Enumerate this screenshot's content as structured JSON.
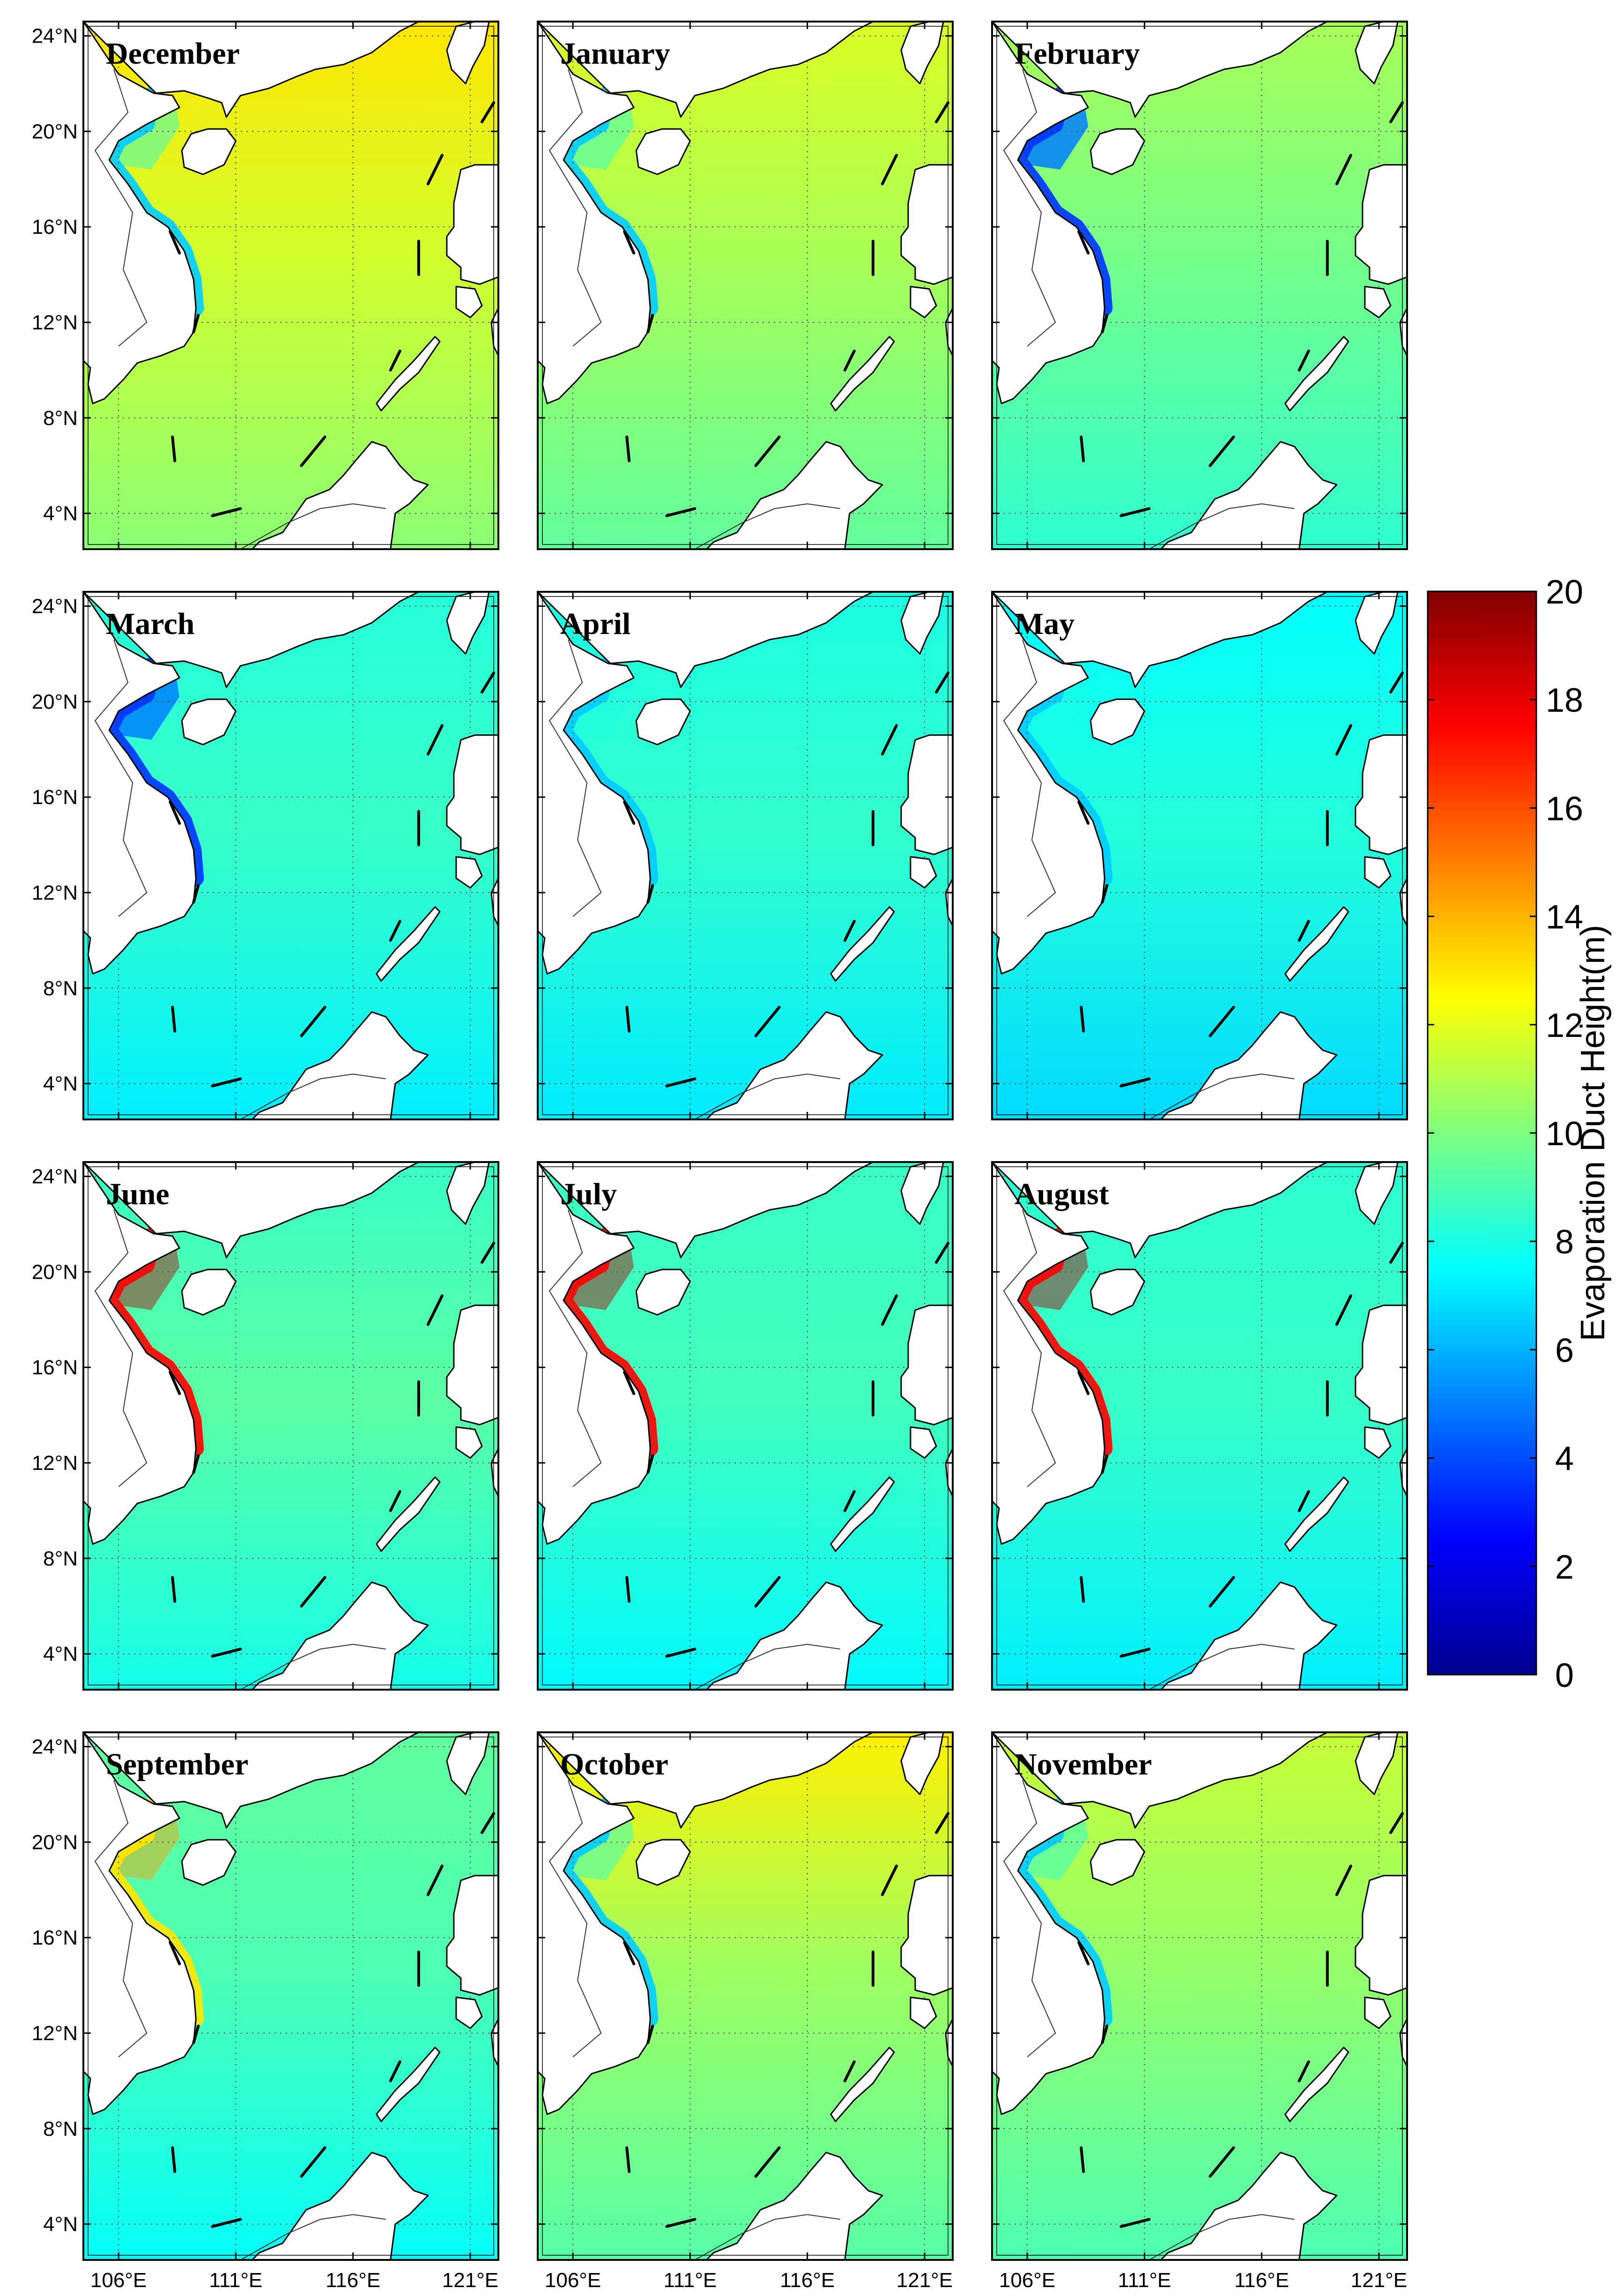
{
  "chart_data": {
    "type": "heatmap",
    "layout": {
      "rows": 4,
      "cols": 3
    },
    "panels": [
      {
        "title": "December",
        "mean_value": 11.6,
        "north_value": 13.0,
        "coastal_band": "low"
      },
      {
        "title": "January",
        "mean_value": 10.8,
        "north_value": 11.8,
        "coastal_band": "low"
      },
      {
        "title": "February",
        "mean_value": 9.8,
        "north_value": 10.8,
        "coastal_band": "lowest"
      },
      {
        "title": "March",
        "mean_value": 8.6,
        "north_value": 8.2,
        "coastal_band": "lowest"
      },
      {
        "title": "April",
        "mean_value": 8.5,
        "north_value": 8.0,
        "coastal_band": "low"
      },
      {
        "title": "May",
        "mean_value": 8.2,
        "north_value": 7.5,
        "coastal_band": "low"
      },
      {
        "title": "June",
        "mean_value": 9.3,
        "north_value": 8.6,
        "coastal_band": "high"
      },
      {
        "title": "July",
        "mean_value": 8.8,
        "north_value": 8.6,
        "coastal_band": "high"
      },
      {
        "title": "August",
        "mean_value": 8.6,
        "north_value": 8.4,
        "coastal_band": "high"
      },
      {
        "title": "September",
        "mean_value": 9.0,
        "north_value": 9.4,
        "coastal_band": "medium"
      },
      {
        "title": "October",
        "mean_value": 10.6,
        "north_value": 12.8,
        "coastal_band": "low"
      },
      {
        "title": "November",
        "mean_value": 10.4,
        "north_value": 11.4,
        "coastal_band": "low"
      }
    ],
    "x_ticks": [
      "106°E",
      "111°E",
      "116°E",
      "121°E"
    ],
    "x_tick_values": [
      106,
      111,
      116,
      121
    ],
    "y_ticks": [
      "24°N",
      "20°N",
      "16°N",
      "12°N",
      "8°N",
      "4°N"
    ],
    "y_tick_values": [
      24,
      20,
      16,
      12,
      8,
      4
    ],
    "xlim": [
      104.5,
      122.2
    ],
    "ylim": [
      2.5,
      24.6
    ],
    "grid": true,
    "grid_style": "dotted",
    "colorbar": {
      "label": "Evaporation Duct Height(m)",
      "min": 0,
      "max": 20,
      "ticks": [
        0,
        2,
        4,
        6,
        8,
        10,
        12,
        14,
        16,
        18,
        20
      ],
      "tick_labels": [
        "0",
        "2",
        "4",
        "6",
        "8",
        "10",
        "12",
        "14",
        "16",
        "18",
        "20"
      ],
      "colormap": "jet",
      "position": "right"
    },
    "colormap_stops": [
      "#00008f",
      "#0000ff",
      "#00ffff",
      "#ffff00",
      "#ff0000",
      "#800000"
    ],
    "land_color": "#ffffff",
    "coast_color": "#000000"
  }
}
